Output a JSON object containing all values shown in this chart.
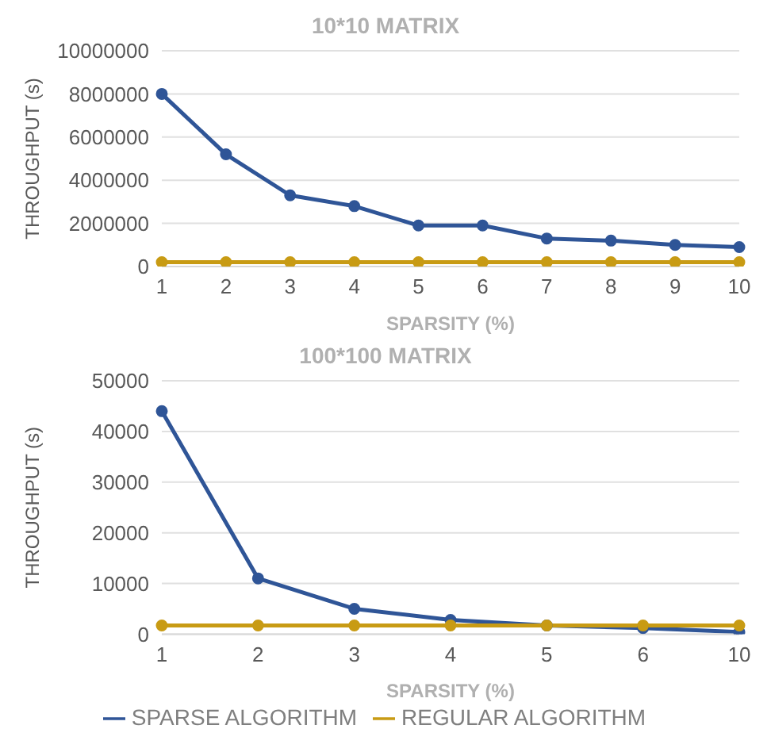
{
  "chart_data": [
    {
      "type": "line",
      "title": "10*10 MATRIX",
      "xlabel": "SPARSITY (%)",
      "ylabel": "THROUGHPUT (s)",
      "categories": [
        "1",
        "2",
        "3",
        "4",
        "5",
        "6",
        "7",
        "8",
        "9",
        "10"
      ],
      "series": [
        {
          "color": "#2f5597",
          "values": [
            8000000,
            5200000,
            3300000,
            2800000,
            1900000,
            1900000,
            1300000,
            1200000,
            1000000,
            900000
          ]
        },
        {
          "color": "#c89b14",
          "values": [
            200000,
            200000,
            200000,
            200000,
            200000,
            200000,
            200000,
            200000,
            200000,
            200000
          ]
        }
      ],
      "ylim": [
        0,
        10000000
      ],
      "yticks": [
        0,
        2000000,
        4000000,
        6000000,
        8000000,
        10000000
      ],
      "grid": "y",
      "marker": "circle",
      "line_style": "solid",
      "legend": false
    },
    {
      "type": "line",
      "title": "100*100 MATRIX",
      "xlabel": "SPARSITY (%)",
      "ylabel": "THROUGHPUT (s)",
      "categories": [
        "1",
        "2",
        "3",
        "4",
        "5",
        "6",
        "10"
      ],
      "series": [
        {
          "name": "SPARSE ALGORITHM",
          "color": "#2f5597",
          "values": [
            44000,
            11000,
            5000,
            2800,
            1700,
            1200,
            400
          ]
        },
        {
          "name": "REGULAR ALGORITHM",
          "color": "#c89b14",
          "values": [
            1700,
            1700,
            1700,
            1700,
            1700,
            1700,
            1700
          ]
        }
      ],
      "ylim": [
        0,
        50000
      ],
      "yticks": [
        0,
        10000,
        20000,
        30000,
        40000,
        50000
      ],
      "grid": "y",
      "marker": "circle",
      "line_style": "solid",
      "legend": "bottom"
    }
  ]
}
